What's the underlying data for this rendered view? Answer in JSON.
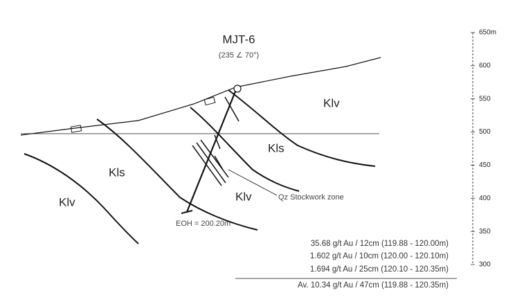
{
  "title": "MJT-6",
  "subtitle": "(235 ∠ 70°)",
  "units": [
    "Klv",
    "Kls",
    "Kls",
    "Klv",
    "Klv"
  ],
  "annotations": {
    "zone": "Qz Stockwork zone",
    "eoh": "EOH = 200.20m"
  },
  "results": [
    "35.68 g/t Au / 12cm (119.88 - 120.00m)",
    "1.602 g/t Au / 10cm (120.00 - 120.10m)",
    "1.694 g/t Au / 25cm (120.10 - 120.35m)",
    "Av. 10.34 g/t Au / 47cm (119.88 - 120.35m)"
  ],
  "scale": [
    "650m",
    "600",
    "550",
    "500",
    "450",
    "400",
    "350",
    "300"
  ]
}
